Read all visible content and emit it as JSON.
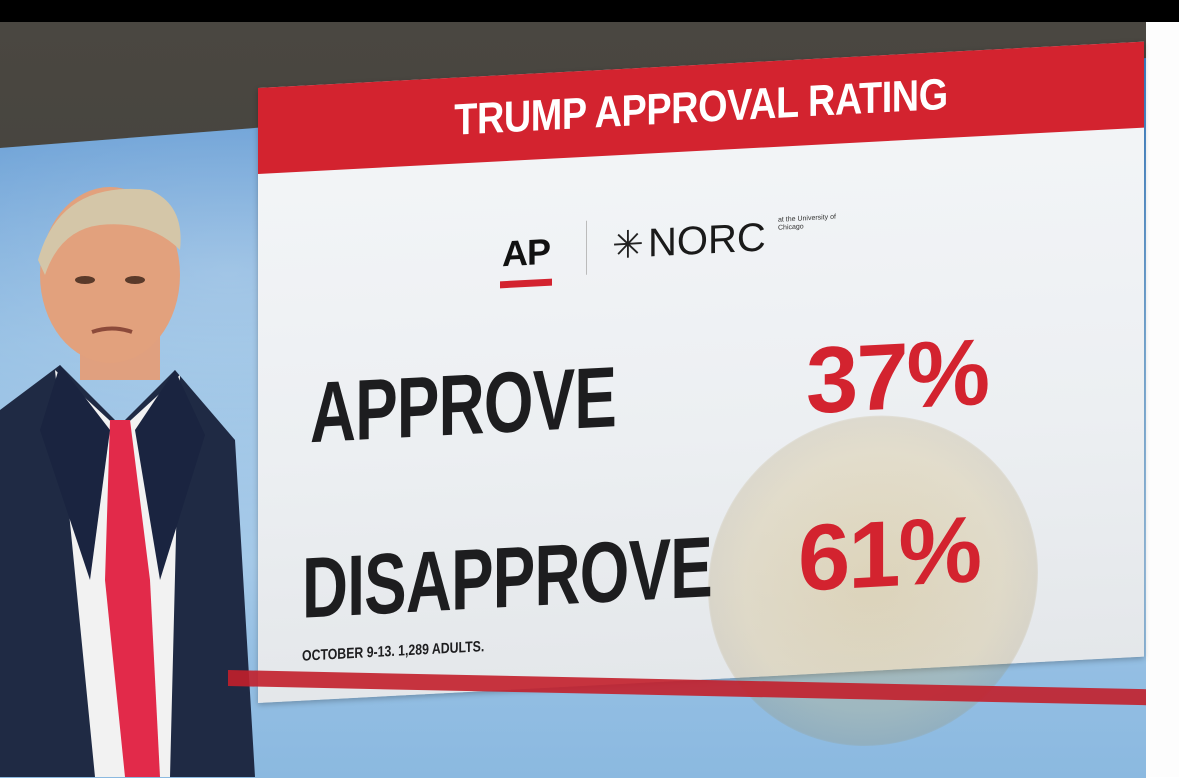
{
  "graphic": {
    "title": "TRUMP APPROVAL RATING",
    "logos": {
      "ap": "AP",
      "norc": "NORC",
      "norc_subtitle": "at the University of Chicago"
    },
    "rows": [
      {
        "label": "APPROVE",
        "value": "37%"
      },
      {
        "label": "DISAPPROVE",
        "value": "61%"
      }
    ],
    "source_note": "OCTOBER 9-13. 1,289 ADULTS."
  },
  "colors": {
    "accent_red": "#d3232f",
    "text_dark": "#1d1d1f",
    "screen_blue": "#7fb2de"
  },
  "icons": {
    "norc_mark": "asterisk-star-icon"
  }
}
